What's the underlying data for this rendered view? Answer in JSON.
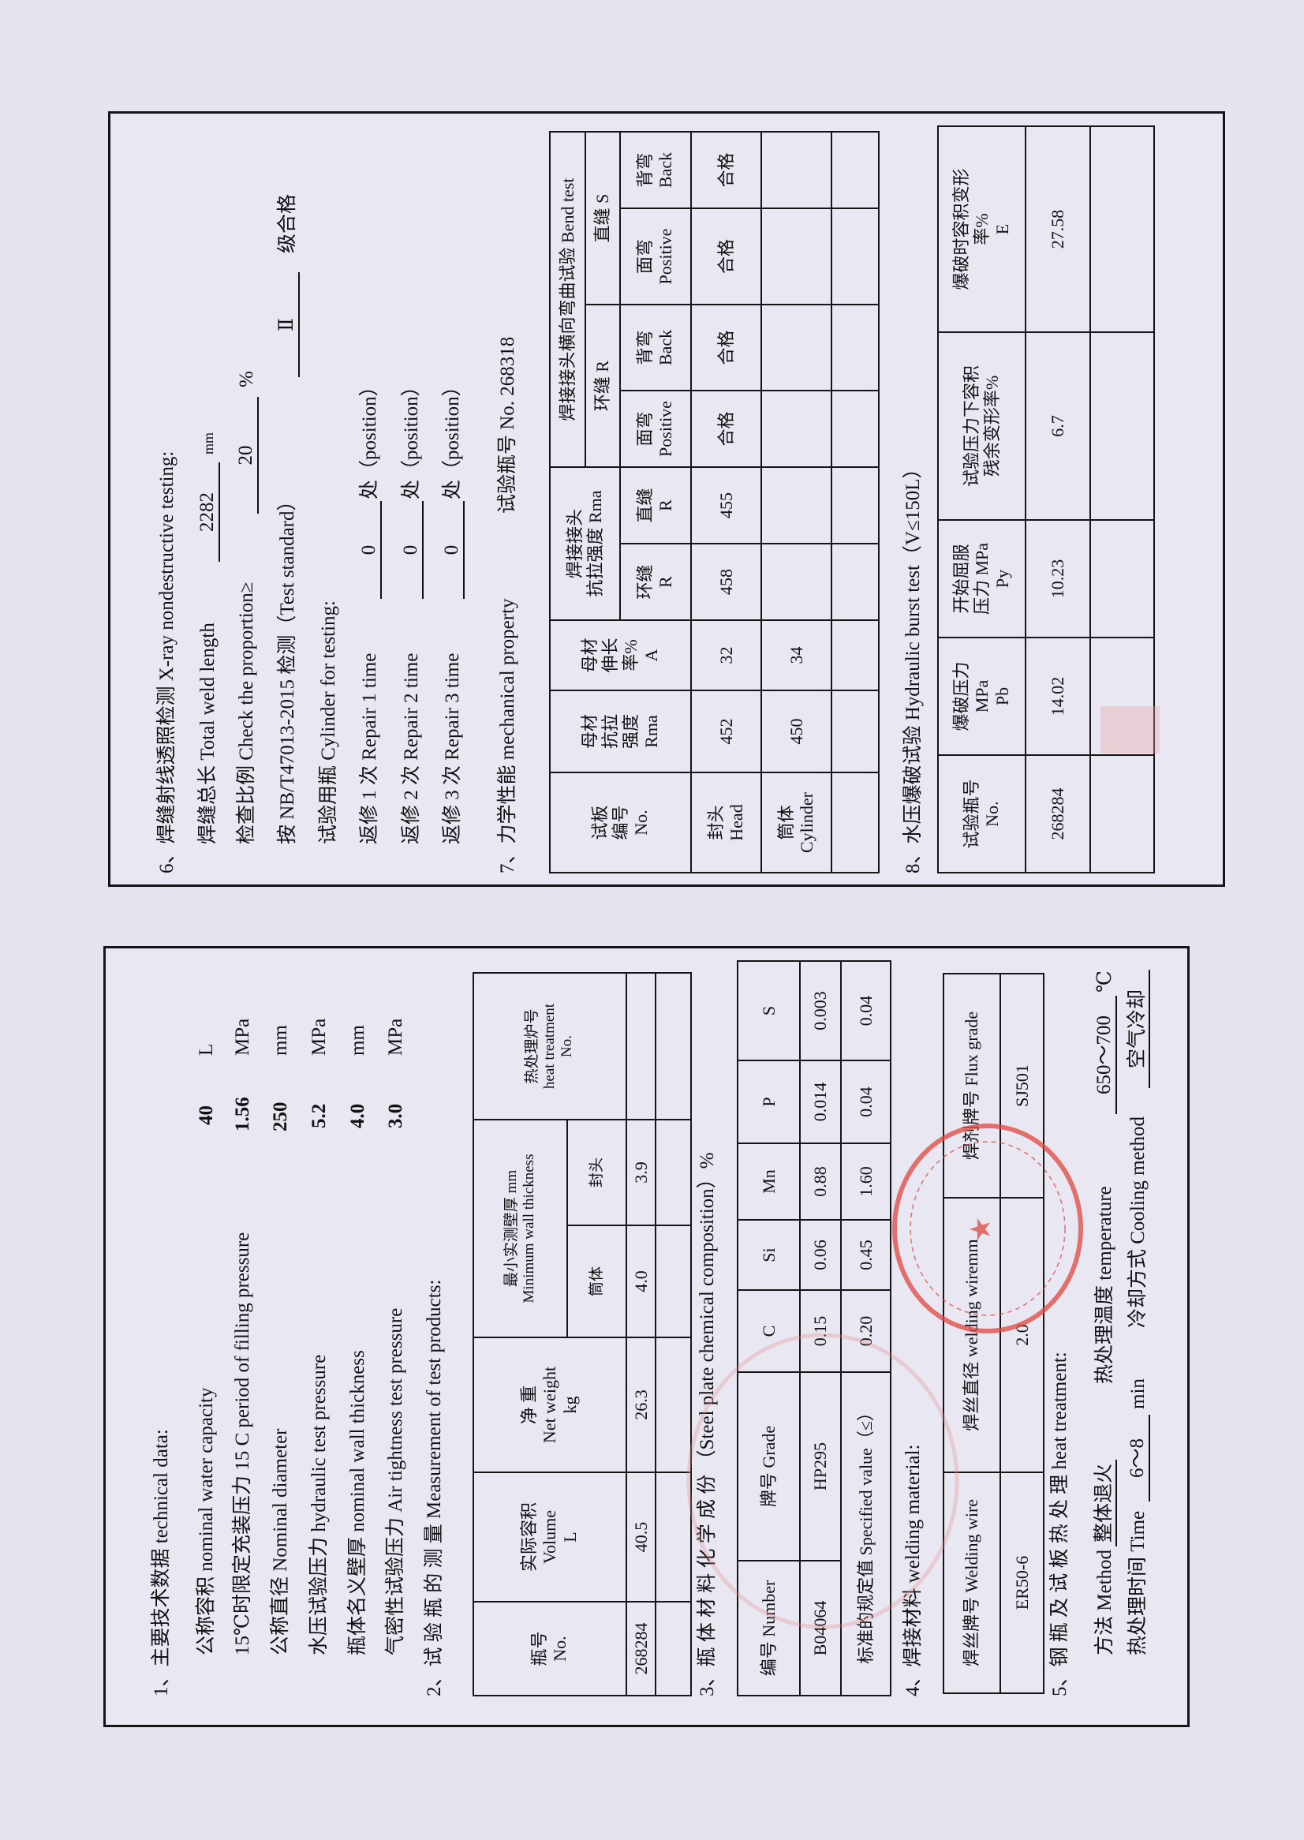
{
  "left": {
    "s1": {
      "title": "1、主要技术数据 technical data:",
      "items": [
        {
          "label": "公称容积 nominal water capacity",
          "value": "40",
          "unit": "L"
        },
        {
          "label": "15℃时限定充装压力 15 C period of filling pressure",
          "value": "1.56",
          "unit": "MPa"
        },
        {
          "label": "公称直径 Nominal diameter",
          "value": "250",
          "unit": "mm"
        },
        {
          "label": "水压试验压力 hydraulic test pressure",
          "value": "5.2",
          "unit": "MPa"
        },
        {
          "label": "瓶体名义壁厚 nominal wall thickness",
          "value": "4.0",
          "unit": "mm"
        },
        {
          "label": "气密性试验压力 Air tightness test pressure",
          "value": "3.0",
          "unit": "MPa"
        }
      ]
    },
    "s2": {
      "title": "2、试 验 瓶 的 测 量 Measurement of test products:",
      "headers": {
        "no": "瓶号\nNo.",
        "volume": "实际容积\nVolume\nL",
        "weight": "净  重\nNet weight\nkg",
        "min_wall": "最小实测壁厚 mm\nMinimum wall thickness",
        "cylinder": "筒体",
        "head": "封头",
        "heat": "热处理炉号\nheat treatment\nNo."
      },
      "rows": [
        [
          "268284",
          "40.5",
          "26.3",
          "4.0",
          "3.9",
          ""
        ]
      ]
    },
    "s3": {
      "title": "3、瓶 体 材 料 化 学 成 份 （Steel plate chemical composition）%",
      "headers": [
        "编号 Number",
        "牌号 Grade",
        "C",
        "Si",
        "Mn",
        "P",
        "S"
      ],
      "row": [
        "B04064",
        "HP295",
        "0.15",
        "0.06",
        "0.88",
        "0.014",
        "0.003"
      ],
      "spec_label": "标准的规定值 Specified value（≤）",
      "spec": [
        "0.20",
        "0.45",
        "1.60",
        "0.04",
        "0.04"
      ]
    },
    "s4": {
      "title": "4、焊接材料 welding material:",
      "headers": [
        "焊丝牌号 Welding wire",
        "焊丝直径 welding wiremm",
        "焊剂牌号 Flux grade"
      ],
      "row": [
        "ER50-6",
        "2.0",
        "SJ501"
      ]
    },
    "s5": {
      "title": "5、钢 瓶 及 试 板 热 处 理  heat treatment:",
      "method_label": "方法 Method",
      "method": "整体退火",
      "temp_label": "热处理温度 temperature",
      "temp": "650～700",
      "temp_unit": "℃",
      "time_label": "热处理时间 Time",
      "time": "6～8",
      "time_unit": "min",
      "cooling_label": "冷却方式 Cooling method",
      "cooling": "空气冷却"
    }
  },
  "right": {
    "s6": {
      "title": "6、焊缝射线透照检测 X-ray nondestructive testing:",
      "weld_length_label": "焊缝总长 Total weld length",
      "weld_length": "2282",
      "weld_length_unit": "mm",
      "proportion_label": "检查比例 Check the proportion≥",
      "proportion": "20",
      "proportion_unit": "%",
      "standard_label": "按 NB/T47013-2015 检测（Test standard）",
      "grade": "Ⅱ",
      "grade_suffix": "级合格",
      "cylinder_label": "试验用瓶 Cylinder for testing:",
      "repairs": [
        {
          "label": "返修 1 次 Repair 1 time",
          "value": "0",
          "suffix": "处（position）"
        },
        {
          "label": "返修 2 次 Repair 2 time",
          "value": "0",
          "suffix": "处（position）"
        },
        {
          "label": "返修 3 次 Repair 3 time",
          "value": "0",
          "suffix": "处（position）"
        }
      ]
    },
    "s7": {
      "title": "7、力学性能 mechanical property",
      "bottle_no": "试验瓶号 No. 268318",
      "headers": {
        "plate": "试板\n编号\nNo.",
        "base_strength": "母材\n抗拉\n强度\nRma",
        "base_elong": "母材\n伸长\n率%\nA",
        "weld_group": "焊接接头\n抗拉强度 Rma",
        "weld_circ": "环缝\nR",
        "weld_long": "直缝\nR",
        "bend_title": "焊接接头横向弯曲试验 Bend test",
        "bend_circ": "环缝 R",
        "bend_long": "直缝 S",
        "face": "面弯\nPositive",
        "back": "背弯\nBack"
      },
      "rows": [
        [
          "封头\nHead",
          "452",
          "32",
          "458",
          "455",
          "合格",
          "合格",
          "合格",
          "合格"
        ],
        [
          "筒体\nCylinder",
          "450",
          "34",
          "",
          "",
          "",
          "",
          "",
          ""
        ],
        [
          "",
          "",
          "",
          "",
          "",
          "",
          "",
          "",
          ""
        ]
      ]
    },
    "s8": {
      "title": "8、水压爆破试验 Hydraulic burst test（V≤150L）",
      "headers": [
        "试验瓶号\nNo.",
        "爆破压力\nMPa\nPb",
        "开始屈服\n压力 MPa\nPy",
        "试验压力下容积\n残余变形率%",
        "爆破时容积变形\n率%\nE"
      ],
      "rows": [
        [
          "268284",
          "14.02",
          "10.23",
          "6.7",
          "27.58"
        ],
        [
          "",
          "",
          "",
          "",
          ""
        ]
      ]
    }
  },
  "colors": {
    "stamp": "#e0473f",
    "ink": "#111111",
    "paper": "#e5e4ef"
  }
}
